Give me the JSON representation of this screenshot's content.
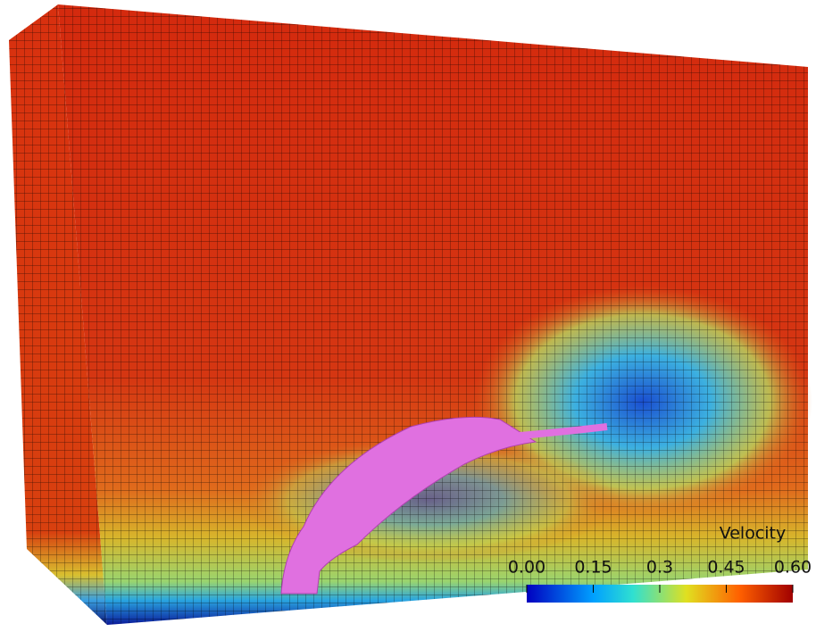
{
  "colorbar": {
    "title": "Velocity",
    "range": [
      0,
      0.6
    ],
    "ticks": [
      {
        "value": 0,
        "label": "0.00"
      },
      {
        "value": 0.15,
        "label": "0.15"
      },
      {
        "value": 0.3,
        "label": "0.3"
      },
      {
        "value": 0.45,
        "label": "0.45"
      },
      {
        "value": 0.6,
        "label": "0.60"
      }
    ]
  }
}
